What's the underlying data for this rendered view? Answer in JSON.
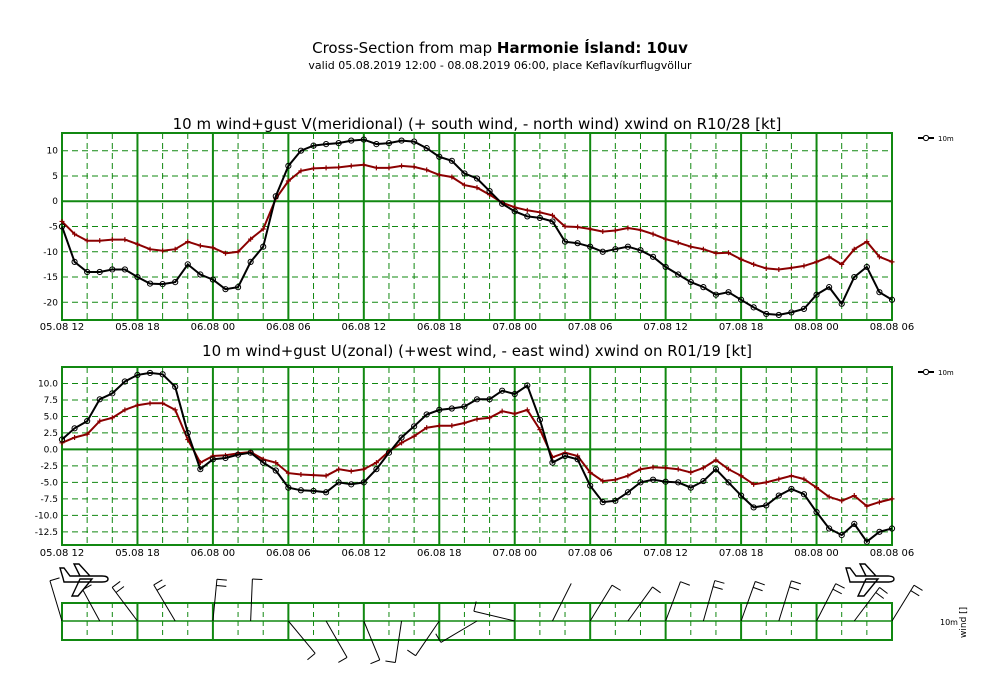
{
  "header": {
    "title_prefix": "Cross-Section from map ",
    "title_bold": "Harmonie Ísland: 10uv",
    "subtitle": "valid 05.08.2019 12:00 - 08.08.2019 06:00, place Keflavíkurflugvöllur"
  },
  "colors": {
    "grid": "#118811",
    "wind": "#000000",
    "gust": "#8b0000"
  },
  "wind_strip": {
    "legend_label": "10m",
    "side_label": "wind []"
  },
  "chart_data": [
    {
      "type": "line",
      "title": "10 m wind+gust V(meridional) (+ south wind, - north wind) xwind on R10/28 [kt]",
      "x_tick_labels": [
        "05.08 12",
        "05.08 18",
        "06.08 00",
        "06.08 06",
        "06.08 12",
        "06.08 18",
        "07.08 00",
        "07.08 06",
        "07.08 12",
        "07.08 18",
        "08.08 00",
        "08.08 06"
      ],
      "x_range_hours": [
        0,
        66
      ],
      "ylim": [
        -23.5,
        13.5
      ],
      "yticks": [
        10,
        5,
        0,
        -5,
        -10,
        -15,
        -20
      ],
      "ytick_labels": [
        "10",
        "5",
        "0",
        "-5",
        "-10",
        "-15",
        "-20"
      ],
      "legend": {
        "label": "10m",
        "position": "top-right"
      },
      "grid": true,
      "series": [
        {
          "name": "10m",
          "color": "#000000",
          "marker": "circle",
          "x": [
            0,
            1,
            2,
            3,
            4,
            5,
            6,
            7,
            8,
            9,
            10,
            11,
            12,
            13,
            14,
            15,
            16,
            17,
            18,
            19,
            20,
            21,
            22,
            23,
            24,
            25,
            26,
            27,
            28,
            29,
            30,
            31,
            32,
            33,
            34,
            35,
            36,
            37,
            38,
            39,
            40,
            41,
            42,
            43,
            44,
            45,
            46,
            47,
            48,
            49,
            50,
            51,
            52,
            53,
            54,
            55,
            56,
            57,
            58,
            59,
            60,
            61,
            62,
            63,
            64,
            65,
            66
          ],
          "y": [
            -5,
            -12,
            -14,
            -14,
            -13.5,
            -13.5,
            -15,
            -16.3,
            -16.4,
            -16,
            -12.5,
            -14.5,
            -15.5,
            -17.4,
            -17,
            -12,
            -9,
            1,
            7,
            10,
            11,
            11.3,
            11.5,
            12,
            12.2,
            11.3,
            11.5,
            12,
            11.8,
            10.5,
            8.8,
            8,
            5.5,
            4.5,
            2,
            -0.5,
            -2,
            -3,
            -3.3,
            -4,
            -8,
            -8.3,
            -9,
            -10,
            -9.5,
            -9,
            -9.7,
            -11,
            -13,
            -14.5,
            -16,
            -17,
            -18.5,
            -18,
            -19.5,
            -21,
            -22.3,
            -22.5,
            -22,
            -21.3,
            -18.5,
            -17,
            -20.3,
            -15,
            -13,
            -18,
            -19.5
          ]
        },
        {
          "name": "",
          "color": "#8b0000",
          "marker": "plus",
          "x": [
            0,
            1,
            2,
            3,
            4,
            5,
            6,
            7,
            8,
            9,
            10,
            11,
            12,
            13,
            14,
            15,
            16,
            17,
            18,
            19,
            20,
            21,
            22,
            23,
            24,
            25,
            26,
            27,
            28,
            29,
            30,
            31,
            32,
            33,
            34,
            35,
            36,
            37,
            38,
            39,
            40,
            41,
            42,
            43,
            44,
            45,
            46,
            47,
            48,
            49,
            50,
            51,
            52,
            53,
            54,
            55,
            56,
            57,
            58,
            59,
            60,
            61,
            62,
            63,
            64,
            65,
            66
          ],
          "y": [
            -4,
            -6.5,
            -7.8,
            -7.8,
            -7.6,
            -7.6,
            -8.5,
            -9.5,
            -9.8,
            -9.5,
            -8,
            -8.8,
            -9.2,
            -10.3,
            -10,
            -7.5,
            -5.5,
            0.5,
            4,
            6,
            6.5,
            6.6,
            6.7,
            7,
            7.2,
            6.6,
            6.6,
            7,
            6.8,
            6.2,
            5.2,
            4.8,
            3.2,
            2.7,
            1.3,
            -0.3,
            -1.2,
            -1.8,
            -2.2,
            -2.8,
            -5,
            -5.1,
            -5.5,
            -6,
            -5.8,
            -5.3,
            -5.7,
            -6.5,
            -7.5,
            -8.2,
            -9,
            -9.5,
            -10.3,
            -10.2,
            -11.5,
            -12.5,
            -13.3,
            -13.5,
            -13.2,
            -12.8,
            -12,
            -11,
            -12.5,
            -9.5,
            -8,
            -11,
            -12
          ]
        }
      ]
    },
    {
      "type": "line",
      "title": "10 m wind+gust U(zonal) (+west wind, - east wind) xwind on R01/19 [kt]",
      "x_tick_labels": [
        "05.08 12",
        "05.08 18",
        "06.08 00",
        "06.08 06",
        "06.08 12",
        "06.08 18",
        "07.08 00",
        "07.08 06",
        "07.08 12",
        "07.08 18",
        "08.08 00",
        "08.08 06"
      ],
      "x_range_hours": [
        0,
        66
      ],
      "ylim": [
        -14.5,
        12.5
      ],
      "yticks": [
        10,
        7.5,
        5,
        2.5,
        0,
        -2.5,
        -5,
        -7.5,
        -10,
        -12.5
      ],
      "ytick_labels": [
        "10.0",
        "7.5",
        "5.0",
        "2.5",
        "0.0",
        "-2.5",
        "-5.0",
        "-7.5",
        "-10.0",
        "-12.5"
      ],
      "legend": {
        "label": "10m",
        "position": "top-right"
      },
      "grid": true,
      "series": [
        {
          "name": "10m",
          "color": "#000000",
          "marker": "circle",
          "x": [
            0,
            1,
            2,
            3,
            4,
            5,
            6,
            7,
            8,
            9,
            10,
            11,
            12,
            13,
            14,
            15,
            16,
            17,
            18,
            19,
            20,
            21,
            22,
            23,
            24,
            25,
            26,
            27,
            28,
            29,
            30,
            31,
            32,
            33,
            34,
            35,
            36,
            37,
            38,
            39,
            40,
            41,
            42,
            43,
            44,
            45,
            46,
            47,
            48,
            49,
            50,
            51,
            52,
            53,
            54,
            55,
            56,
            57,
            58,
            59,
            60,
            61,
            62,
            63,
            64,
            65,
            66
          ],
          "y": [
            1.5,
            3.2,
            4.3,
            7.6,
            8.5,
            10.3,
            11.3,
            11.6,
            11.4,
            9.5,
            2.5,
            -3,
            -1.5,
            -1.3,
            -0.8,
            -0.5,
            -2,
            -3.2,
            -5.8,
            -6.2,
            -6.3,
            -6.5,
            -5,
            -5.3,
            -5,
            -3,
            -0.5,
            1.8,
            3.5,
            5.3,
            6,
            6.2,
            6.5,
            7.6,
            7.6,
            8.9,
            8.4,
            9.7,
            4.5,
            -2,
            -1,
            -1.5,
            -5.5,
            -8,
            -7.8,
            -6.5,
            -5,
            -4.6,
            -4.9,
            -5,
            -5.8,
            -4.8,
            -3,
            -5,
            -7,
            -8.8,
            -8.5,
            -7,
            -6,
            -6.8,
            -9.5,
            -12,
            -13,
            -11.3,
            -14,
            -12.5,
            -12
          ]
        },
        {
          "name": "",
          "color": "#8b0000",
          "marker": "plus",
          "x": [
            0,
            1,
            2,
            3,
            4,
            5,
            6,
            7,
            8,
            9,
            10,
            11,
            12,
            13,
            14,
            15,
            16,
            17,
            18,
            19,
            20,
            21,
            22,
            23,
            24,
            25,
            26,
            27,
            28,
            29,
            30,
            31,
            32,
            33,
            34,
            35,
            36,
            37,
            38,
            39,
            40,
            41,
            42,
            43,
            44,
            45,
            46,
            47,
            48,
            49,
            50,
            51,
            52,
            53,
            54,
            55,
            56,
            57,
            58,
            59,
            60,
            61,
            62,
            63,
            64,
            65,
            66
          ],
          "y": [
            1,
            1.8,
            2.3,
            4.3,
            4.8,
            6,
            6.7,
            7,
            7,
            6,
            1.5,
            -2,
            -1,
            -0.9,
            -0.6,
            -0.4,
            -1.5,
            -2,
            -3.6,
            -3.8,
            -3.9,
            -4,
            -3,
            -3.3,
            -3,
            -2,
            -0.3,
            1,
            2,
            3.3,
            3.6,
            3.6,
            4,
            4.6,
            4.8,
            5.8,
            5.4,
            6,
            3,
            -1.2,
            -0.5,
            -1,
            -3.5,
            -4.8,
            -4.6,
            -4,
            -3,
            -2.7,
            -2.8,
            -3,
            -3.5,
            -2.8,
            -1.6,
            -3,
            -4,
            -5.3,
            -5,
            -4.5,
            -4,
            -4.5,
            -5.8,
            -7.2,
            -7.8,
            -7,
            -8.6,
            -8,
            -7.5
          ]
        }
      ]
    }
  ]
}
